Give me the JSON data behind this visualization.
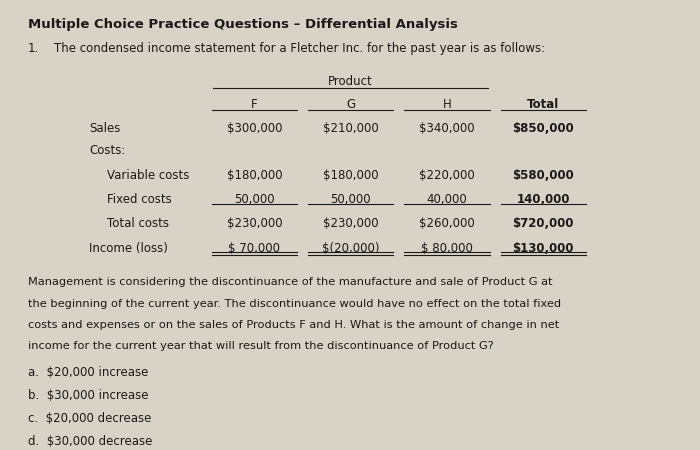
{
  "title": "Multiple Choice Practice Questions – Differential Analysis",
  "question_number": "1.",
  "question_text": "The condensed income statement for a Fletcher Inc. for the past year is as follows:",
  "bg_color": "#d9d3c7",
  "text_color": "#1a1a1a",
  "product_header": "Product",
  "col_headers": [
    "F",
    "G",
    "H",
    "Total"
  ],
  "sales_row": [
    "$300,000",
    "$210,000",
    "$340,000",
    "$850,000"
  ],
  "variable_costs_row": [
    "$180,000",
    "$180,000",
    "$220,000",
    "$580,000"
  ],
  "fixed_costs_row": [
    "50,000",
    "50,000",
    "40,000",
    "140,000"
  ],
  "total_costs_row": [
    "$230,000",
    "$230,000",
    "$260,000",
    "$720,000"
  ],
  "income_row": [
    "$ 70,000",
    "$(20,000)",
    "$ 80,000",
    "$130,000"
  ],
  "paragraph": "Management is considering the discontinuance of the manufacture and sale of Product G at\nthe beginning of the current year. The discontinuance would have no effect on the total fixed\ncosts and expenses or on the sales of Products F and H. What is the amount of change in net\nincome for the current year that will result from the discontinuance of Product G?",
  "choices": [
    "a.  $20,000 increase",
    "b.  $30,000 increase",
    "c.  $20,000 decrease",
    "d.  $30,000 decrease"
  ]
}
